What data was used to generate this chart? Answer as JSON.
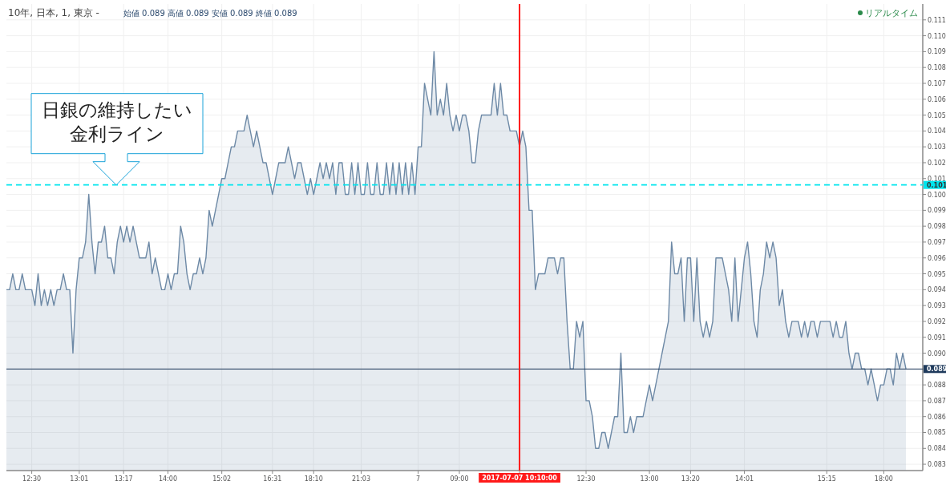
{
  "chart_data": {
    "type": "area",
    "title": "10年, 日本, 1, 東京 -",
    "subtitle": "始値 0.089 高値 0.089 安値 0.089 終値 0.089",
    "annotations": [
      {
        "text": "日銀の維持したい金利ライン",
        "y": 0.1006
      },
      "リアルタイム"
    ],
    "categories": [
      null,
      null,
      null,
      null,
      null,
      null,
      null,
      null,
      "12:30",
      null,
      null,
      null,
      null,
      null,
      null,
      null,
      null,
      null,
      null,
      null,
      null,
      null,
      null,
      "13:01",
      null,
      null,
      null,
      null,
      null,
      null,
      null,
      null,
      null,
      null,
      null,
      null,
      null,
      "13:17",
      null,
      null,
      null,
      null,
      null,
      null,
      null,
      null,
      null,
      null,
      null,
      null,
      null,
      "14:00",
      null,
      null,
      null,
      null,
      null,
      null,
      null,
      null,
      null,
      null,
      null,
      null,
      null,
      null,
      null,
      null,
      "15:02",
      null,
      null,
      null,
      null,
      null,
      null,
      null,
      null,
      null,
      null,
      null,
      null,
      null,
      null,
      null,
      "16:31",
      null,
      null,
      null,
      null,
      null,
      null,
      null,
      null,
      null,
      null,
      null,
      null,
      "18:10",
      null,
      null,
      null,
      null,
      null,
      null,
      null,
      null,
      null,
      null,
      null,
      null,
      null,
      null,
      "21:03",
      null,
      null,
      null,
      null,
      null,
      null,
      null,
      null,
      null,
      null,
      null,
      null,
      null,
      null,
      null,
      null,
      null,
      "7",
      null,
      null,
      null,
      null,
      null,
      null,
      null,
      null,
      null,
      null,
      null,
      null,
      "09:00",
      null,
      null,
      null,
      null,
      null,
      null,
      null,
      null,
      null,
      null,
      null,
      null,
      null,
      null,
      null,
      null,
      null,
      null,
      "2017-07-07 10:10:00",
      null,
      null,
      null,
      null,
      null,
      null,
      null,
      null,
      null,
      null,
      null,
      null,
      null,
      null,
      null,
      null,
      null,
      null,
      null,
      null,
      "12:30",
      null,
      null,
      null,
      null,
      null,
      null,
      null,
      null,
      null,
      null,
      null,
      null,
      null,
      null,
      null,
      null,
      null,
      null,
      null,
      "13:00",
      null,
      null,
      null,
      null,
      null,
      null,
      null,
      null,
      null,
      null,
      null,
      null,
      "13:20",
      null,
      null,
      null,
      null,
      null,
      null,
      null,
      null,
      null,
      null,
      null,
      null,
      null,
      null,
      null,
      null,
      "14:01",
      null,
      null,
      null,
      null,
      null,
      null,
      null,
      null,
      null,
      null,
      null,
      null,
      null,
      null,
      null,
      null,
      null,
      null,
      null,
      null,
      null,
      null,
      null,
      null,
      null,
      "15:15",
      null,
      null,
      null,
      null,
      null,
      null,
      null,
      null,
      null,
      null,
      null,
      null,
      null,
      null,
      null,
      null,
      null,
      "18:00",
      null,
      null,
      null,
      null,
      null,
      null,
      null
    ],
    "ylim": [
      0.0826,
      0.112
    ],
    "yticks": [
      0.083,
      0.084,
      0.085,
      0.086,
      0.087,
      0.088,
      {
        "value": 0.089,
        "label": null
      },
      {
        "value": 0.09,
        "label": "0.090"
      },
      0.091,
      0.092,
      0.093,
      0.094,
      0.095,
      0.096,
      0.097,
      0.098,
      0.099,
      {
        "value": 0.1,
        "label": "0.100"
      },
      0.101,
      0.102,
      0.103,
      0.104,
      0.105,
      0.106,
      0.107,
      0.108,
      0.109,
      {
        "value": 0.11,
        "label": "0.110"
      },
      0.111
    ],
    "grid": true,
    "ref_lines": [
      {
        "axis": "y",
        "value": 0.1006,
        "label": "0.101",
        "color": "#00e5ee",
        "line_style": "dashed"
      },
      {
        "axis": "y",
        "value": 0.089,
        "label": "0.089",
        "color": "#1e3a5c",
        "line_style": "solid"
      },
      {
        "axis": "x",
        "value": "2017-07-07 10:10:00",
        "color": "#ff1a1a",
        "line_style": "solid"
      }
    ],
    "series": [
      {
        "color": "#6d89a6",
        "values": [
          0.094,
          0.094,
          0.095,
          0.094,
          0.094,
          0.095,
          0.094,
          0.094,
          0.094,
          0.093,
          0.095,
          0.093,
          0.094,
          0.093,
          0.094,
          0.093,
          0.094,
          0.094,
          0.095,
          0.094,
          0.094,
          0.09,
          0.094,
          0.096,
          0.096,
          0.097,
          0.1,
          0.097,
          0.095,
          0.097,
          0.097,
          0.098,
          0.096,
          0.096,
          0.095,
          0.097,
          0.098,
          0.097,
          0.098,
          0.097,
          0.098,
          0.097,
          0.096,
          0.096,
          0.096,
          0.097,
          0.095,
          0.096,
          0.095,
          0.094,
          0.094,
          0.095,
          0.094,
          0.095,
          0.095,
          0.098,
          0.097,
          0.095,
          0.094,
          0.095,
          0.095,
          0.096,
          0.095,
          0.096,
          0.099,
          0.098,
          0.099,
          0.1,
          0.101,
          0.101,
          0.102,
          0.103,
          0.103,
          0.104,
          0.104,
          0.104,
          0.105,
          0.104,
          0.103,
          0.104,
          0.103,
          0.102,
          0.102,
          0.101,
          0.1,
          0.101,
          0.102,
          0.102,
          0.102,
          0.103,
          0.102,
          0.101,
          0.102,
          0.102,
          0.101,
          0.1,
          0.101,
          0.1,
          0.101,
          0.102,
          0.101,
          0.102,
          0.101,
          0.102,
          0.1,
          0.102,
          0.102,
          0.1,
          0.1,
          0.102,
          0.1,
          0.102,
          0.1,
          0.1,
          0.102,
          0.1,
          0.1,
          0.102,
          0.1,
          0.1,
          0.102,
          0.1,
          0.102,
          0.1,
          0.102,
          0.1,
          0.102,
          0.1,
          0.102,
          0.1,
          0.103,
          0.103,
          0.107,
          0.106,
          0.105,
          0.109,
          0.105,
          0.106,
          0.105,
          0.107,
          0.105,
          0.104,
          0.105,
          0.104,
          0.105,
          0.105,
          0.104,
          0.102,
          0.102,
          0.104,
          0.105,
          0.105,
          0.105,
          0.105,
          0.107,
          0.105,
          0.107,
          0.105,
          0.105,
          0.104,
          0.104,
          0.104,
          0.103,
          0.104,
          0.103,
          0.099,
          0.099,
          0.094,
          0.095,
          0.095,
          0.095,
          0.096,
          0.096,
          0.096,
          0.095,
          0.096,
          0.096,
          0.092,
          0.089,
          0.089,
          0.092,
          0.091,
          0.092,
          0.087,
          0.087,
          0.086,
          0.084,
          0.084,
          0.085,
          0.085,
          0.084,
          0.085,
          0.086,
          0.086,
          0.09,
          0.085,
          0.085,
          0.086,
          0.085,
          0.086,
          0.086,
          0.086,
          0.087,
          0.088,
          0.087,
          0.088,
          0.089,
          0.09,
          0.091,
          0.092,
          0.097,
          0.095,
          0.095,
          0.096,
          0.092,
          0.096,
          0.096,
          0.092,
          0.096,
          0.092,
          0.091,
          0.092,
          0.091,
          0.092,
          0.096,
          0.096,
          0.096,
          0.095,
          0.094,
          0.092,
          0.096,
          0.092,
          0.094,
          0.096,
          0.097,
          0.095,
          0.092,
          0.091,
          0.094,
          0.095,
          0.097,
          0.096,
          0.097,
          0.096,
          0.093,
          0.094,
          0.092,
          0.091,
          0.092,
          0.092,
          0.092,
          0.091,
          0.092,
          0.091,
          0.092,
          0.092,
          0.091,
          0.092,
          0.092,
          0.092,
          0.092,
          0.091,
          0.092,
          0.091,
          0.091,
          0.092,
          0.09,
          0.089,
          0.09,
          0.09,
          0.089,
          0.089,
          0.088,
          0.089,
          0.088,
          0.087,
          0.088,
          0.088,
          0.089,
          0.089,
          0.088,
          0.09,
          0.089,
          0.09,
          0.089
        ]
      }
    ]
  }
}
